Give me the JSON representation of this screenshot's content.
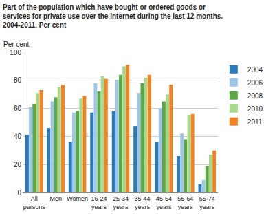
{
  "chart_data": {
    "type": "bar",
    "title": "Part of the population which have bought or ordered goods or\nservices for private use over the Internet during the last 12 months.\n2004-2011. Per cent",
    "y_label": "Per cent",
    "categories": [
      "All persons",
      "Men",
      "Women",
      "16-24 years",
      "25-34 years",
      "35-44 years",
      "45-54 years",
      "55-64 years",
      "65-74 years"
    ],
    "series": [
      {
        "name": "2004",
        "color": "#2a7bbd",
        "values": [
          41,
          46,
          36,
          57,
          58,
          47,
          36,
          26,
          6
        ]
      },
      {
        "name": "2006",
        "color": "#9fc5e8",
        "values": [
          61,
          65,
          57,
          78,
          80,
          71,
          60,
          42,
          9
        ]
      },
      {
        "name": "2008",
        "color": "#5aa846",
        "values": [
          63,
          68,
          58,
          72,
          84,
          78,
          65,
          38,
          19
        ]
      },
      {
        "name": "2010",
        "color": "#a8d98a",
        "values": [
          71,
          75,
          67,
          83,
          90,
          82,
          70,
          55,
          27
        ]
      },
      {
        "name": "2011",
        "color": "#f58220",
        "values": [
          73,
          77,
          69,
          81,
          91,
          84,
          77,
          56,
          30
        ]
      }
    ],
    "ylim": [
      0,
      100
    ],
    "yticks": [
      0,
      20,
      40,
      60,
      80,
      100
    ],
    "grid": true,
    "legend": "right"
  }
}
